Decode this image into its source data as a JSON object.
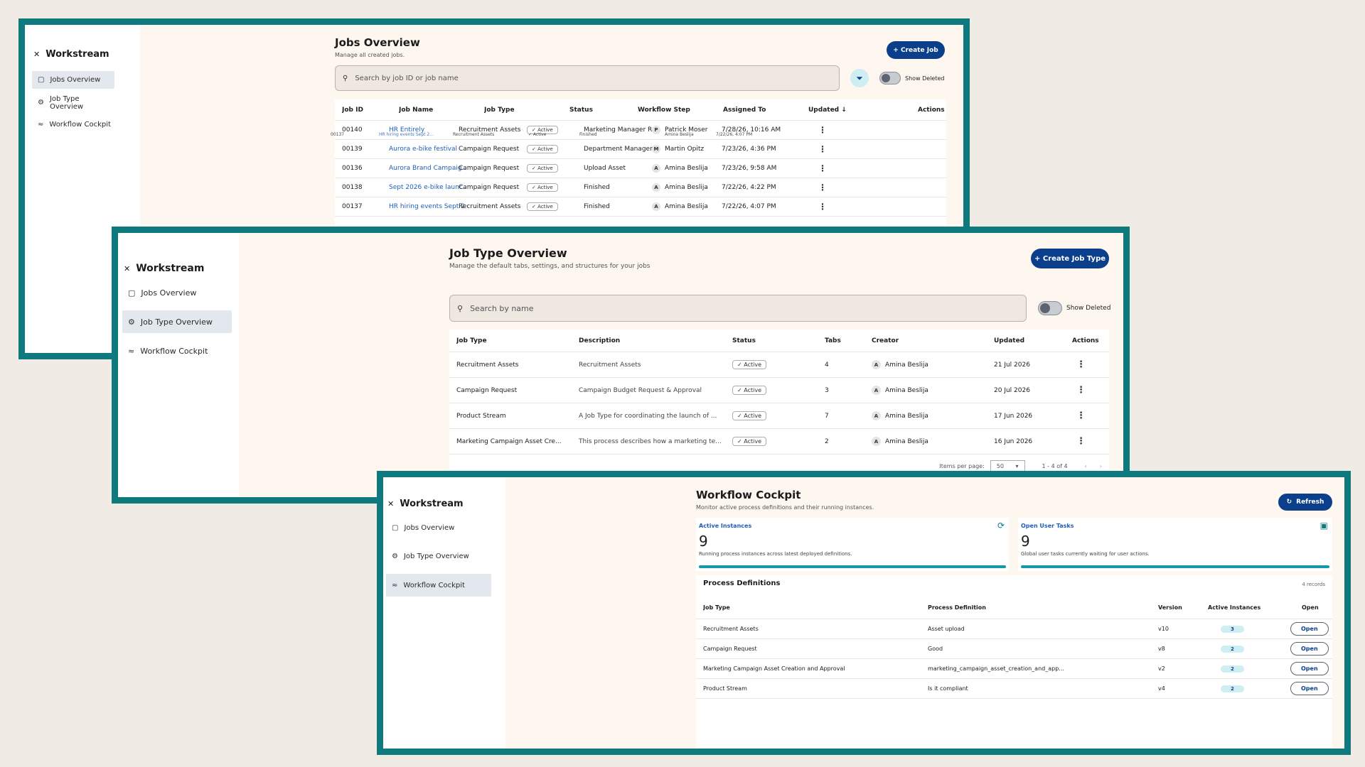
{
  "app": {
    "brand": "Workstream"
  },
  "nav": [
    {
      "label": "Jobs Overview",
      "icon": "briefcase-icon"
    },
    {
      "label": "Job Type Overview",
      "icon": "gear-icon"
    },
    {
      "label": "Workflow Cockpit",
      "icon": "chart-icon"
    }
  ],
  "jobs": {
    "title": "Jobs Overview",
    "subtitle": "Manage all created jobs.",
    "create_label": "+ Create Job",
    "search_placeholder": "Search by job ID or job name",
    "show_deleted": "Show Deleted",
    "columns": [
      "Job ID",
      "Job Name",
      "Job Type",
      "Status",
      "Workflow Step",
      "Assigned To",
      "Updated ↓",
      "Actions"
    ],
    "rows": [
      {
        "id": "00140",
        "name": "HR Entirely",
        "type": "Recruitment Assets",
        "status": "✓ Active",
        "step": "Marketing Manager R...",
        "av": "P",
        "assigned": "Patrick Moser",
        "updated": "7/28/26, 10:16 AM"
      },
      {
        "id": "00139",
        "name": "Aurora e-bike festival",
        "type": "Campaign Request",
        "status": "✓ Active",
        "step": "Department Manager ...",
        "av": "M",
        "assigned": "Martin Opitz",
        "updated": "7/23/26, 4:36 PM"
      },
      {
        "id": "00136",
        "name": "Aurora Brand Campaig...",
        "type": "Campaign Request",
        "status": "✓ Active",
        "step": "Upload Asset",
        "av": "A",
        "assigned": "Amina Beslija",
        "updated": "7/23/26, 9:58 AM"
      },
      {
        "id": "00138",
        "name": "Sept 2026 e-bike launc...",
        "type": "Campaign Request",
        "status": "✓ Active",
        "step": "Finished",
        "av": "A",
        "assigned": "Amina Beslija",
        "updated": "7/22/26, 4:22 PM"
      },
      {
        "id": "00137",
        "name": "HR hiring events Sept 2...",
        "type": "Recruitment Assets",
        "status": "✓ Active",
        "step": "Finished",
        "av": "A",
        "assigned": "Amina Beslija",
        "updated": "7/22/26, 4:07 PM"
      }
    ],
    "ghost": {
      "id": "00137",
      "name": "HR hiring events Sept 2...",
      "type": "Recruitment Assets",
      "status": "✓ Active",
      "step": "Finished",
      "av": "A",
      "assigned": "Amina Beslija",
      "updated": "7/22/26, 4:07 PM"
    }
  },
  "jobtypes": {
    "title": "Job Type Overview",
    "subtitle": "Manage the default tabs, settings, and structures for your jobs",
    "create_label": "+ Create Job Type",
    "search_placeholder": "Search by name",
    "show_deleted": "Show Deleted",
    "columns": [
      "Job Type",
      "Description",
      "Status",
      "Tabs",
      "Creator",
      "Updated",
      "Actions"
    ],
    "rows": [
      {
        "type": "Recruitment Assets",
        "desc": "Recruitment Assets",
        "status": "✓ Active",
        "tabs": "4",
        "av": "A",
        "creator": "Amina Beslija",
        "updated": "21 Jul 2026"
      },
      {
        "type": "Campaign Request",
        "desc": "Campaign Budget Request & Approval",
        "status": "✓ Active",
        "tabs": "3",
        "av": "A",
        "creator": "Amina Beslija",
        "updated": "20 Jul 2026"
      },
      {
        "type": "Product Stream",
        "desc": "A Job Type for coordinating the launch of ...",
        "status": "✓ Active",
        "tabs": "7",
        "av": "A",
        "creator": "Amina Beslija",
        "updated": "17 Jun 2026"
      },
      {
        "type": "Marketing Campaign Asset Cre...",
        "desc": "This process describes how a marketing te...",
        "status": "✓ Active",
        "tabs": "2",
        "av": "A",
        "creator": "Amina Beslija",
        "updated": "16 Jun 2026"
      }
    ],
    "pager": {
      "items_label": "Items per page:",
      "page_size": "50",
      "range": "1 - 4 of 4"
    }
  },
  "cockpit": {
    "title": "Workflow Cockpit",
    "subtitle": "Monitor active process definitions and their running instances.",
    "refresh_label": "Refresh",
    "cards": [
      {
        "label": "Active Instances",
        "value": "9",
        "desc": "Running process instances across latest deployed definitions."
      },
      {
        "label": "Open User Tasks",
        "value": "9",
        "desc": "Global user tasks currently waiting for user actions."
      }
    ],
    "pd_title": "Process Definitions",
    "pd_count": "4 records",
    "columns": [
      "Job Type",
      "Process Definition",
      "Version",
      "Active Instances",
      "Open"
    ],
    "rows": [
      {
        "type": "Recruitment Assets",
        "def": "Asset upload",
        "ver": "v10",
        "inst": "3",
        "open": "Open"
      },
      {
        "type": "Campaign Request",
        "def": "Good",
        "ver": "v8",
        "inst": "2",
        "open": "Open"
      },
      {
        "type": "Marketing Campaign Asset Creation and Approval",
        "def": "marketing_campaign_asset_creation_and_app...",
        "ver": "v2",
        "inst": "2",
        "open": "Open"
      },
      {
        "type": "Product Stream",
        "def": "Is it compliant",
        "ver": "v4",
        "inst": "2",
        "open": "Open"
      }
    ]
  },
  "colors": {
    "frame": "#0e7a7d",
    "primary": "#0b3f8c",
    "link": "#1e5eb8",
    "accent_bar": "#1599a8"
  }
}
